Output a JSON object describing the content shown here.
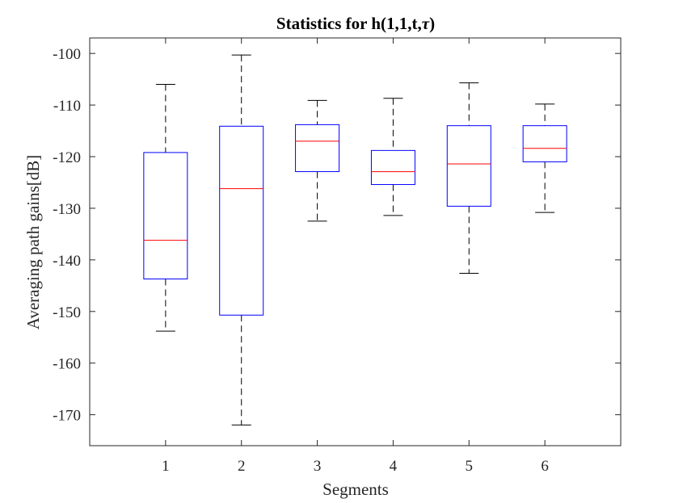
{
  "chart_data": {
    "type": "boxplot",
    "title_main": "Statistics for h(1,1,t,",
    "title_symbol": "τ",
    "title_end": ")",
    "xlabel": "Segments",
    "ylabel": "Averaging path gains[dB]",
    "ylim": [
      -176,
      -97
    ],
    "yticks": [
      -100,
      -110,
      -120,
      -130,
      -140,
      -150,
      -160,
      -170
    ],
    "categories": [
      "1",
      "2",
      "3",
      "4",
      "5",
      "6"
    ],
    "boxes": [
      {
        "whisker_high": -106.0,
        "q3": -119.2,
        "median": -136.2,
        "q1": -143.7,
        "whisker_low": -153.8
      },
      {
        "whisker_high": -100.3,
        "q3": -114.1,
        "median": -126.2,
        "q1": -150.7,
        "whisker_low": -172.0
      },
      {
        "whisker_high": -109.1,
        "q3": -113.8,
        "median": -117.0,
        "q1": -122.9,
        "whisker_low": -132.5
      },
      {
        "whisker_high": -108.7,
        "q3": -118.8,
        "median": -122.9,
        "q1": -125.4,
        "whisker_low": -131.4
      },
      {
        "whisker_high": -105.7,
        "q3": -114.0,
        "median": -121.4,
        "q1": -129.6,
        "whisker_low": -142.6
      },
      {
        "whisker_high": -109.8,
        "q3": -114.0,
        "median": -118.4,
        "q1": -121.0,
        "whisker_low": -130.8
      }
    ],
    "grid": false,
    "colors": {
      "box": "#0000ff",
      "median": "#ff0000",
      "whisker": "#000000",
      "axis": "#262626"
    }
  }
}
